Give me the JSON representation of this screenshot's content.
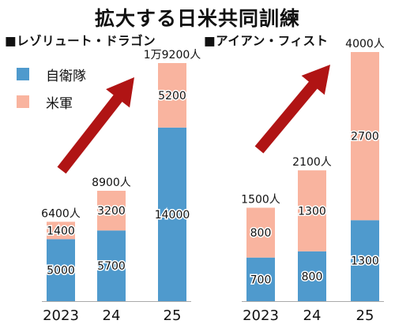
{
  "title": "拡大する日米共同訓練",
  "legend": [
    {
      "label": "自衛隊",
      "color": "#4f9acd"
    },
    {
      "label": "米軍",
      "color": "#f9b49f"
    }
  ],
  "colors": {
    "arrow": "#b01414",
    "bar_stroke": "#222222"
  },
  "chart_data": [
    {
      "type": "bar",
      "stacked": true,
      "title": "■レゾリュート・ドラゴン",
      "categories": [
        "2023",
        "24",
        "25"
      ],
      "series": [
        {
          "name": "自衛隊",
          "values": [
            5000,
            5700,
            14000
          ]
        },
        {
          "name": "米軍",
          "values": [
            1400,
            3200,
            5200
          ]
        }
      ],
      "totals": [
        "6400人",
        "8900人",
        "1万9200人"
      ],
      "ylim": [
        0,
        19200
      ],
      "grid": false
    },
    {
      "type": "bar",
      "stacked": true,
      "title": "■アイアン・フィスト",
      "categories": [
        "2023",
        "24",
        "25"
      ],
      "series": [
        {
          "name": "自衛隊",
          "values": [
            700,
            800,
            1300
          ]
        },
        {
          "name": "米軍",
          "values": [
            800,
            1300,
            2700
          ]
        }
      ],
      "totals": [
        "1500人",
        "2100人",
        "4000人"
      ],
      "ylim": [
        0,
        4000
      ],
      "grid": false
    }
  ]
}
